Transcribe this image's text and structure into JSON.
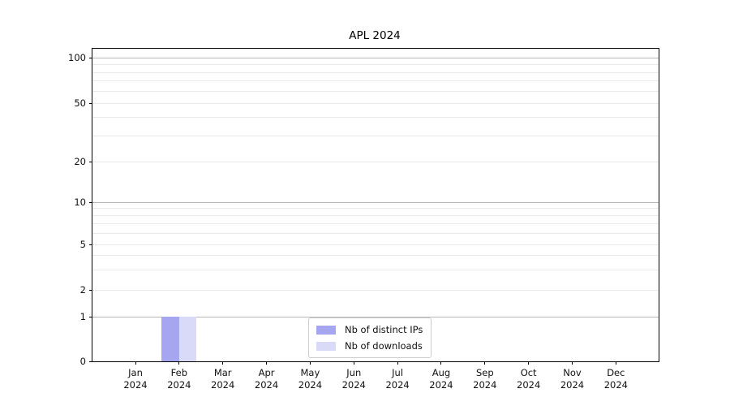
{
  "chart_data": {
    "type": "bar",
    "title": "APL 2024",
    "categories": [
      "Jan 2024",
      "Feb 2024",
      "Mar 2024",
      "Apr 2024",
      "May 2024",
      "Jun 2024",
      "Jul 2024",
      "Aug 2024",
      "Sep 2024",
      "Oct 2024",
      "Nov 2024",
      "Dec 2024"
    ],
    "series": [
      {
        "name": "Nb of distinct IPs",
        "color": "#a5a5f0",
        "values": [
          0,
          1,
          0,
          0,
          0,
          0,
          0,
          0,
          0,
          0,
          0,
          0
        ]
      },
      {
        "name": "Nb of downloads",
        "color": "#d9d9f8",
        "values": [
          0,
          1,
          0,
          0,
          0,
          0,
          0,
          0,
          0,
          0,
          0,
          0
        ]
      }
    ],
    "xlabel": "",
    "ylabel": "",
    "yscale": "symlog",
    "yticks": [
      0,
      1,
      2,
      5,
      10,
      20,
      50,
      100
    ],
    "minor_grid_values": [
      2,
      3,
      4,
      5,
      6,
      7,
      8,
      9,
      20,
      30,
      40,
      50,
      60,
      70,
      80,
      90
    ],
    "major_grid_values": [
      1,
      10,
      100
    ],
    "ylim": [
      0,
      100
    ],
    "grid": "horizontal",
    "legend": {
      "position": "bottom-center-inside",
      "entries": [
        "Nb of distinct IPs",
        "Nb of downloads"
      ]
    },
    "colors": {
      "grid_major": "#b8b8b8",
      "grid_minor": "#e9e9e9",
      "axis": "#000000",
      "legend_border": "#cccccc",
      "background": "#ffffff"
    }
  }
}
